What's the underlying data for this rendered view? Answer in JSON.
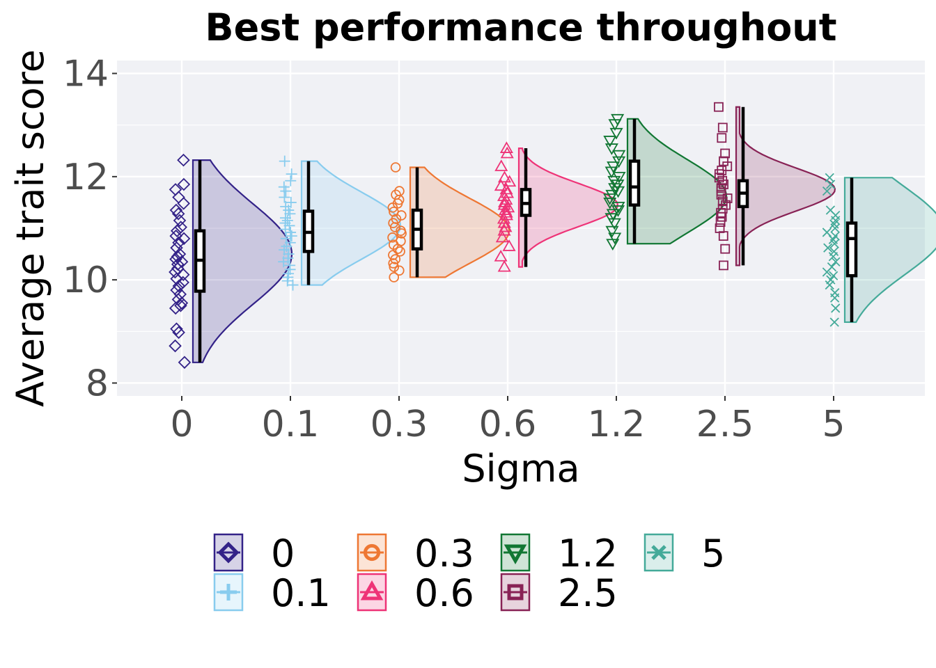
{
  "chart_data": {
    "type": "raincloud",
    "title": "Best performance throughout",
    "xlabel": "Sigma",
    "ylabel": "Average trait score",
    "categories": [
      "0",
      "0.1",
      "0.3",
      "0.6",
      "1.2",
      "2.5",
      "5"
    ],
    "yticks": [
      8,
      10,
      12,
      14
    ],
    "ylim": [
      7.75,
      14.25
    ],
    "grid": true,
    "legend_position": "bottom",
    "series": [
      {
        "name": "0",
        "color": "#332288",
        "marker": "diamond",
        "min": 8.4,
        "q1": 9.78,
        "median": 10.38,
        "q3": 10.95,
        "max": 12.32,
        "mode": 10.5,
        "points": [
          12.32,
          11.85,
          11.75,
          11.6,
          11.48,
          11.35,
          11.28,
          11.15,
          11.02,
          10.95,
          10.85,
          10.8,
          10.72,
          10.62,
          10.5,
          10.45,
          10.4,
          10.35,
          10.3,
          10.22,
          10.15,
          10.1,
          10.02,
          9.95,
          9.88,
          9.8,
          9.72,
          9.62,
          9.55,
          9.5,
          9.45,
          9.05,
          8.98,
          8.72,
          8.4
        ]
      },
      {
        "name": "0.1",
        "color": "#88CCEE",
        "marker": "plus",
        "min": 9.9,
        "q1": 10.55,
        "median": 10.92,
        "q3": 11.33,
        "max": 12.3,
        "mode": 11.05,
        "points": [
          12.3,
          12.05,
          11.92,
          11.8,
          11.72,
          11.6,
          11.5,
          11.42,
          11.35,
          11.28,
          11.2,
          11.15,
          11.1,
          11.05,
          10.98,
          10.92,
          10.85,
          10.8,
          10.72,
          10.65,
          10.58,
          10.5,
          10.42,
          10.35,
          10.28,
          10.2,
          10.12,
          10.05,
          9.98,
          9.9
        ]
      },
      {
        "name": "0.3",
        "color": "#EE7733",
        "marker": "circle",
        "min": 10.05,
        "q1": 10.6,
        "median": 10.98,
        "q3": 11.35,
        "max": 12.18,
        "mode": 10.95,
        "points": [
          12.18,
          11.72,
          11.65,
          11.55,
          11.48,
          11.4,
          11.32,
          11.25,
          11.18,
          11.1,
          11.02,
          10.95,
          10.9,
          10.82,
          10.75,
          10.68,
          10.6,
          10.55,
          10.48,
          10.4,
          10.32,
          10.25,
          10.18,
          10.05
        ]
      },
      {
        "name": "0.6",
        "color": "#EE3377",
        "marker": "triangle-up",
        "min": 10.25,
        "q1": 11.25,
        "median": 11.48,
        "q3": 11.75,
        "max": 12.55,
        "mode": 11.45,
        "points": [
          12.55,
          12.45,
          12.2,
          11.98,
          11.9,
          11.82,
          11.75,
          11.68,
          11.62,
          11.55,
          11.5,
          11.45,
          11.4,
          11.35,
          11.3,
          11.25,
          11.18,
          11.1,
          11.02,
          10.95,
          10.82,
          10.65,
          10.45,
          10.25
        ]
      },
      {
        "name": "1.2",
        "color": "#117733",
        "marker": "triangle-down",
        "min": 10.7,
        "q1": 11.45,
        "median": 11.8,
        "q3": 12.3,
        "max": 13.12,
        "mode": 11.62,
        "points": [
          13.12,
          13.02,
          12.85,
          12.7,
          12.55,
          12.42,
          12.3,
          12.2,
          12.1,
          12.0,
          11.92,
          11.85,
          11.78,
          11.72,
          11.65,
          11.58,
          11.5,
          11.42,
          11.35,
          11.28,
          11.2,
          11.1,
          10.95,
          10.82,
          10.7
        ]
      },
      {
        "name": "2.5",
        "color": "#882255",
        "marker": "square",
        "min": 10.28,
        "q1": 11.42,
        "median": 11.68,
        "q3": 11.92,
        "max": 13.35,
        "mode": 11.75,
        "points": [
          13.35,
          12.95,
          12.75,
          12.45,
          12.3,
          12.2,
          12.12,
          12.05,
          11.98,
          11.92,
          11.85,
          11.78,
          11.72,
          11.65,
          11.58,
          11.52,
          11.45,
          11.38,
          11.3,
          11.22,
          11.12,
          11.0,
          10.85,
          10.6,
          10.28
        ]
      },
      {
        "name": "5",
        "color": "#44AA99",
        "marker": "x",
        "min": 9.18,
        "q1": 10.08,
        "median": 10.8,
        "q3": 11.1,
        "max": 11.98,
        "mode": 10.95,
        "points": [
          11.98,
          11.85,
          11.72,
          11.35,
          11.25,
          11.15,
          11.08,
          11.0,
          10.92,
          10.85,
          10.78,
          10.7,
          10.62,
          10.55,
          10.45,
          10.35,
          10.25,
          10.15,
          10.08,
          10.0,
          9.9,
          9.75,
          9.65,
          9.45,
          9.18
        ]
      }
    ]
  }
}
